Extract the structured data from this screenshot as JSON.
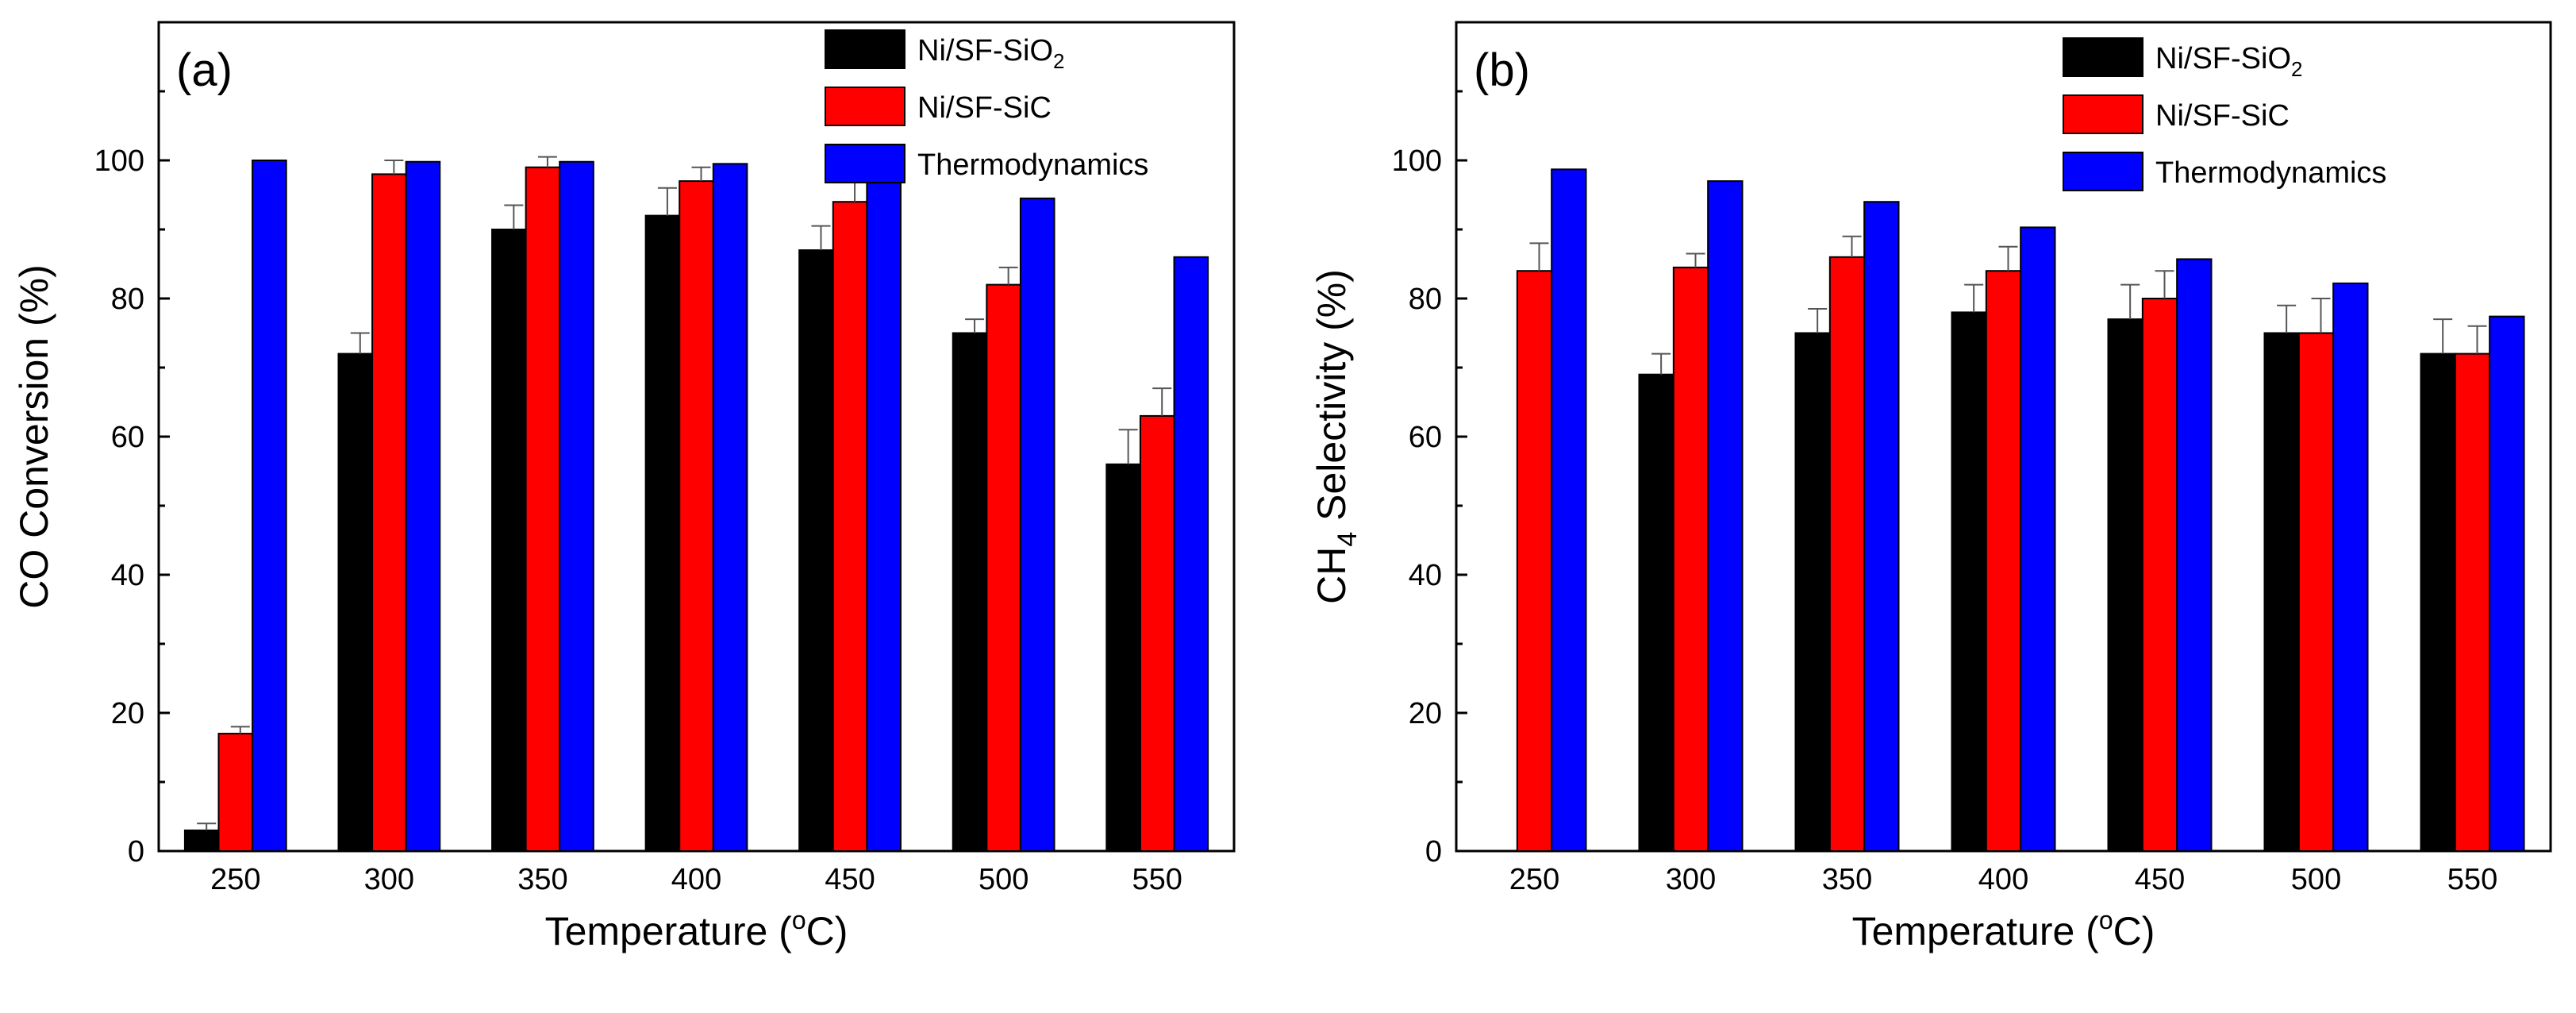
{
  "chart_data": [
    {
      "type": "bar",
      "panel_label": "(a)",
      "categories": [
        "250",
        "300",
        "350",
        "400",
        "450",
        "500",
        "550"
      ],
      "xlabel_main": "Temperature (",
      "xlabel_super": "o",
      "xlabel_end": "C)",
      "ylabel": "CO Conversion (%)",
      "ylim": [
        0,
        120
      ],
      "yticks": [
        0,
        20,
        40,
        60,
        80,
        100
      ],
      "legend_position": "top-right",
      "series": [
        {
          "name": "Ni/SF-SiO",
          "subscript": "2",
          "color": "#000000",
          "values": [
            3,
            72,
            90,
            92,
            87,
            75,
            56
          ],
          "errors": [
            1,
            3,
            3.5,
            4,
            3.5,
            2,
            5
          ]
        },
        {
          "name": "Ni/SF-SiC",
          "subscript": "",
          "color": "#ff0000",
          "values": [
            17,
            98,
            99,
            97,
            94,
            82,
            63
          ],
          "errors": [
            1,
            2,
            1.5,
            2,
            3,
            2.5,
            4
          ]
        },
        {
          "name": "Thermodynamics",
          "subscript": "",
          "color": "#0000ff",
          "values": [
            100,
            99.8,
            99.8,
            99.5,
            97,
            94.5,
            86
          ],
          "errors": [
            0,
            0,
            0,
            0,
            0,
            0,
            0
          ]
        }
      ]
    },
    {
      "type": "bar",
      "panel_label": "(b)",
      "categories": [
        "250",
        "300",
        "350",
        "400",
        "450",
        "500",
        "550"
      ],
      "xlabel_main": "Temperature (",
      "xlabel_super": "o",
      "xlabel_end": "C)",
      "ylabel_pre": "CH",
      "ylabel_sub": "4",
      "ylabel_post": " Selectivity (%)",
      "ylim": [
        0,
        120
      ],
      "yticks": [
        0,
        20,
        40,
        60,
        80,
        100
      ],
      "legend_position": "top-right",
      "series": [
        {
          "name": "Ni/SF-SiO",
          "subscript": "2",
          "color": "#000000",
          "values": [
            0,
            69,
            75,
            78,
            77,
            75,
            72
          ],
          "errors": [
            0,
            3,
            3.5,
            4,
            5,
            4,
            5
          ]
        },
        {
          "name": "Ni/SF-SiC",
          "subscript": "",
          "color": "#ff0000",
          "values": [
            84,
            84.5,
            86,
            84,
            80,
            75,
            72
          ],
          "errors": [
            4,
            2,
            3,
            3.5,
            4,
            5,
            4
          ]
        },
        {
          "name": "Thermodynamics",
          "subscript": "",
          "color": "#0000ff",
          "values": [
            98.7,
            97,
            94,
            90.3,
            85.7,
            82.2,
            77.4
          ],
          "errors": [
            0,
            0,
            0,
            0,
            0,
            0,
            0
          ]
        }
      ]
    }
  ]
}
